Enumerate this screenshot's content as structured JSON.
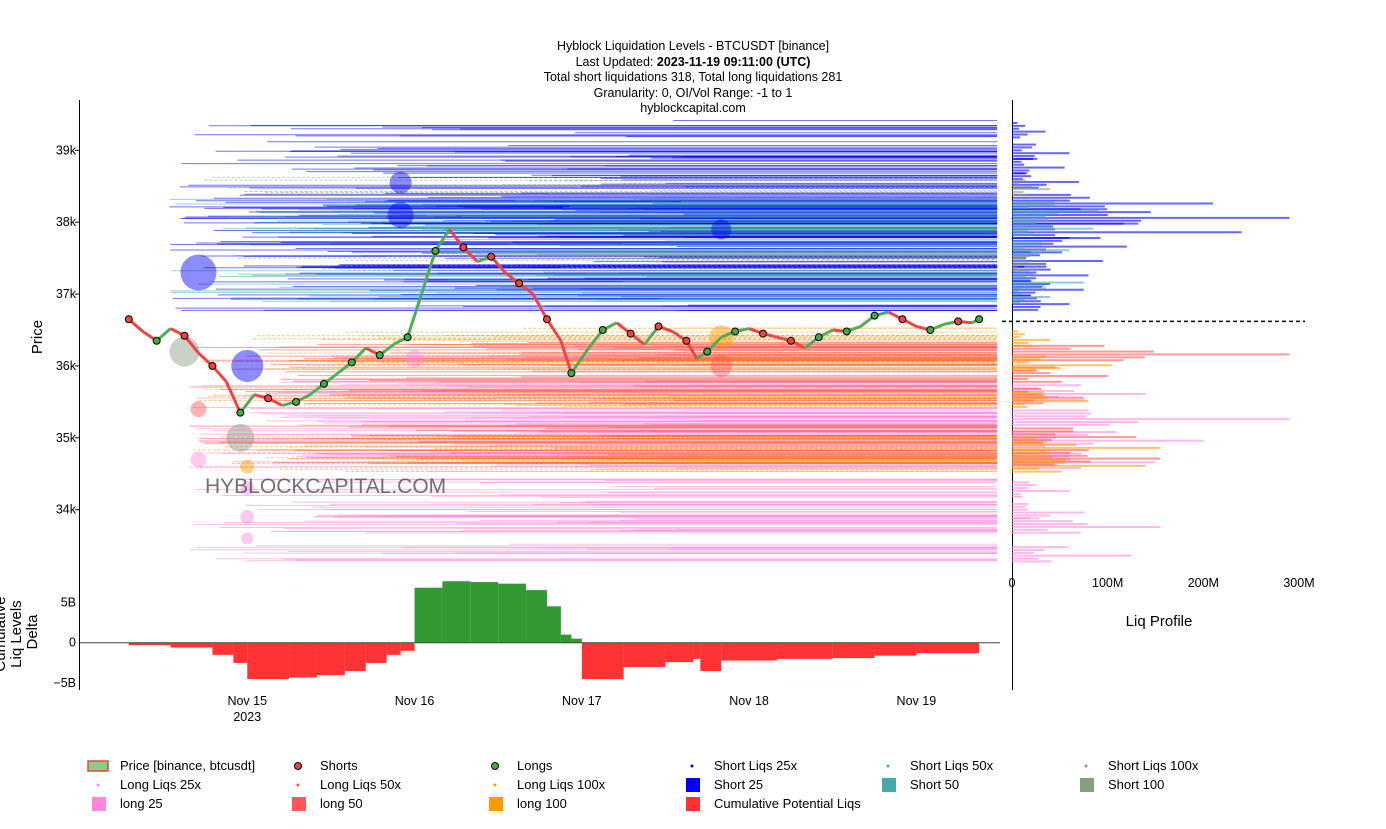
{
  "title": {
    "line1": "Hyblock Liquidation Levels - BTCUSDT [binance]",
    "line2_prefix": "Last Updated: ",
    "line2_bold": "2023-11-19 09:11:00 (UTC)",
    "line3": "Total short liquidations 318, Total long liquidations 281",
    "line4": "Granularity: 0, OI/Vol Range: -1 to 1",
    "line5": "hyblockcapital.com"
  },
  "watermark": "HYBLOCKCAPITAL.COM",
  "colors": {
    "short25": "#0000ff",
    "short50": "#44aaaa",
    "short100": "#889c80",
    "long25": "#ff88dd",
    "long50": "#ff5555",
    "long100": "#ff9900",
    "price_up": "#55aa55",
    "price_down": "#ee4444",
    "delta_pos": "#339933",
    "delta_neg": "#ff3333"
  },
  "chart_data": [
    {
      "type": "line",
      "name": "price",
      "ylabel": "Price",
      "y_ticks": [
        "34k",
        "35k",
        "36k",
        "37k",
        "38k",
        "39k"
      ],
      "x_ticks": [
        "Nov 15",
        "Nov 16",
        "Nov 17",
        "Nov 18",
        "Nov 19"
      ],
      "x_tick_sub": "2023",
      "ylim": [
        33300,
        39700
      ],
      "xlim": [
        "2023-11-14 00:00",
        "2023-11-19 12:00"
      ],
      "series": [
        {
          "name": "Price [binance, btcusdt]",
          "x": [
            "2023-11-14 07:00",
            "2023-11-14 09:00",
            "2023-11-14 11:00",
            "2023-11-14 13:00",
            "2023-11-14 15:00",
            "2023-11-14 17:00",
            "2023-11-14 19:00",
            "2023-11-14 21:00",
            "2023-11-14 23:00",
            "2023-11-15 01:00",
            "2023-11-15 03:00",
            "2023-11-15 05:00",
            "2023-11-15 07:00",
            "2023-11-15 09:00",
            "2023-11-15 11:00",
            "2023-11-15 13:00",
            "2023-11-15 15:00",
            "2023-11-15 17:00",
            "2023-11-15 19:00",
            "2023-11-15 21:00",
            "2023-11-15 23:00",
            "2023-11-16 01:00",
            "2023-11-16 03:00",
            "2023-11-16 05:00",
            "2023-11-16 07:00",
            "2023-11-16 09:00",
            "2023-11-16 11:00",
            "2023-11-16 13:00",
            "2023-11-16 15:00",
            "2023-11-16 17:00",
            "2023-11-16 19:00",
            "2023-11-16 21:00",
            "2023-11-16 22:30",
            "2023-11-17 01:00",
            "2023-11-17 03:00",
            "2023-11-17 05:00",
            "2023-11-17 07:00",
            "2023-11-17 09:00",
            "2023-11-17 11:00",
            "2023-11-17 13:00",
            "2023-11-17 15:00",
            "2023-11-17 16:30",
            "2023-11-17 18:00",
            "2023-11-17 20:00",
            "2023-11-17 22:00",
            "2023-11-18 00:00",
            "2023-11-18 02:00",
            "2023-11-18 04:00",
            "2023-11-18 06:00",
            "2023-11-18 08:00",
            "2023-11-18 10:00",
            "2023-11-18 12:00",
            "2023-11-18 14:00",
            "2023-11-18 16:00",
            "2023-11-18 18:00",
            "2023-11-18 20:00",
            "2023-11-18 22:00",
            "2023-11-19 00:00",
            "2023-11-19 02:00",
            "2023-11-19 04:00",
            "2023-11-19 06:00",
            "2023-11-19 08:00",
            "2023-11-19 09:00"
          ],
          "y": [
            36650,
            36480,
            36350,
            36520,
            36420,
            36180,
            36000,
            35780,
            35350,
            35600,
            35550,
            35450,
            35500,
            35600,
            35750,
            35900,
            36050,
            36250,
            36150,
            36300,
            36400,
            37000,
            37600,
            37900,
            37650,
            37450,
            37520,
            37300,
            37150,
            37000,
            36650,
            36350,
            35900,
            36250,
            36500,
            36600,
            36450,
            36300,
            36550,
            36480,
            36350,
            36100,
            36200,
            36400,
            36480,
            36520,
            36450,
            36400,
            36350,
            36250,
            36400,
            36500,
            36480,
            36550,
            36700,
            36750,
            36650,
            36550,
            36500,
            36580,
            36620,
            36600,
            36650
          ]
        }
      ]
    },
    {
      "type": "area",
      "name": "delta",
      "ylabel": "Cumulative Liq Levels Delta",
      "y_ticks": [
        "5B",
        "0",
        "−5B"
      ],
      "ylim": [
        -5.6,
        8
      ],
      "series": [
        {
          "name": "Cumulative Potential Liqs",
          "x": [
            "2023-11-14 07:00",
            "2023-11-14 13:00",
            "2023-11-14 19:00",
            "2023-11-14 22:00",
            "2023-11-15 00:00",
            "2023-11-15 06:00",
            "2023-11-15 10:00",
            "2023-11-15 14:00",
            "2023-11-15 17:00",
            "2023-11-15 20:00",
            "2023-11-15 22:00",
            "2023-11-16 00:00",
            "2023-11-16 04:00",
            "2023-11-16 08:00",
            "2023-11-16 12:00",
            "2023-11-16 16:00",
            "2023-11-16 19:00",
            "2023-11-16 21:00",
            "2023-11-16 22:30",
            "2023-11-17 00:00",
            "2023-11-17 06:00",
            "2023-11-17 12:00",
            "2023-11-17 16:00",
            "2023-11-17 17:00",
            "2023-11-17 20:00",
            "2023-11-18 04:00",
            "2023-11-18 12:00",
            "2023-11-18 18:00",
            "2023-11-19 00:00",
            "2023-11-19 09:00"
          ],
          "y": [
            -0.3,
            -0.6,
            -1.5,
            -2.5,
            -4.5,
            -4.3,
            -4.0,
            -3.5,
            -2.5,
            -1.5,
            -1.0,
            6.8,
            7.6,
            7.5,
            7.3,
            6.5,
            4.5,
            1.0,
            0.5,
            -4.5,
            -3.0,
            -2.4,
            -2.0,
            -3.5,
            -2.2,
            -2.0,
            -1.9,
            -1.6,
            -1.3,
            -1.0
          ]
        }
      ]
    },
    {
      "type": "bar",
      "name": "liq_profile",
      "xlabel": "Liq Profile",
      "x_ticks": [
        "0",
        "100M",
        "200M",
        "300M"
      ],
      "xlim": [
        0,
        330
      ],
      "series": [
        {
          "name": "short 25",
          "price": [
            39300,
            39000,
            38800,
            38600,
            38300,
            38100,
            37900,
            37700,
            37500,
            37300,
            37100,
            36900
          ],
          "value": [
            35,
            60,
            55,
            70,
            210,
            290,
            240,
            120,
            95,
            80,
            75,
            60
          ]
        },
        {
          "name": "short 50",
          "price": [
            38200,
            37950,
            37650,
            37200,
            37000
          ],
          "value": [
            90,
            85,
            60,
            75,
            40
          ]
        },
        {
          "name": "short 100",
          "price": [
            38500,
            37450
          ],
          "value": [
            40,
            35
          ]
        },
        {
          "name": "long 25",
          "price": [
            35650,
            35300,
            35000,
            34700,
            34300,
            34000,
            33800,
            33400
          ],
          "value": [
            140,
            290,
            200,
            150,
            60,
            75,
            155,
            125
          ]
        },
        {
          "name": "long 50",
          "price": [
            36200,
            35900,
            35600,
            35050,
            34750
          ],
          "value": [
            290,
            100,
            75,
            130,
            155
          ]
        },
        {
          "name": "long 100",
          "price": [
            36400,
            36050,
            35550,
            34900,
            34650
          ],
          "value": [
            40,
            105,
            80,
            155,
            140
          ]
        }
      ]
    }
  ],
  "legend": {
    "items": [
      {
        "label": "Price [binance, btcusdt]",
        "kind": "price",
        "color": "#55aa55"
      },
      {
        "label": "Shorts",
        "kind": "dot",
        "color": "#ee4444"
      },
      {
        "label": "Longs",
        "kind": "dot",
        "color": "#44aa44"
      },
      {
        "label": "Short Liqs 25x",
        "kind": "tiny",
        "color": "#0000ff"
      },
      {
        "label": "Short Liqs 50x",
        "kind": "tiny",
        "color": "#44aaaa"
      },
      {
        "label": "Short Liqs 100x",
        "kind": "tiny",
        "color": "#889c80"
      },
      {
        "label": "Long Liqs 25x",
        "kind": "tiny",
        "color": "#ff88dd"
      },
      {
        "label": "Long Liqs 50x",
        "kind": "tiny",
        "color": "#ff5555"
      },
      {
        "label": "Long Liqs 100x",
        "kind": "tiny",
        "color": "#ff9900"
      },
      {
        "label": "Short 25",
        "kind": "square",
        "color": "#0000ff"
      },
      {
        "label": "Short 50",
        "kind": "square",
        "color": "#44aaaa"
      },
      {
        "label": "Short 100",
        "kind": "square",
        "color": "#889c80"
      },
      {
        "label": "long 25",
        "kind": "square",
        "color": "#ff88dd"
      },
      {
        "label": "long 50",
        "kind": "square",
        "color": "#ff5555"
      },
      {
        "label": "long 100",
        "kind": "square",
        "color": "#ff9900"
      },
      {
        "label": "Cumulative Potential Liqs",
        "kind": "square",
        "color": "#ff3333"
      }
    ]
  }
}
